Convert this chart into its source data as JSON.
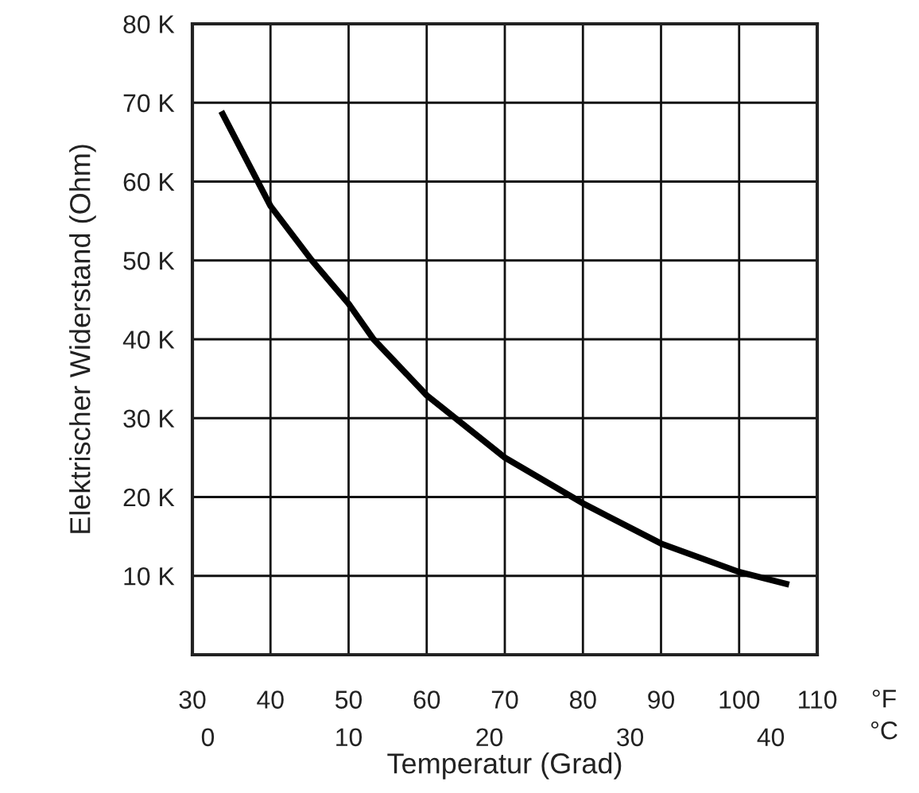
{
  "chart_data": {
    "type": "line",
    "xlabel": "Temperatur (Grad)",
    "ylabel": "Elektrischer Widerstand (Ohm)",
    "annotations": [
      "°F",
      "°C"
    ],
    "series": [
      {
        "color": "#000000",
        "x": [
          33.7,
          40,
          45.3,
          50,
          53.2,
          60,
          70,
          80,
          90,
          100,
          106.4
        ],
        "values": [
          68900,
          56900,
          50000,
          44500,
          40000,
          32900,
          25000,
          19200,
          14100,
          10500,
          8900
        ]
      }
    ],
    "xlim": [
      30,
      110
    ],
    "xticks": [
      30,
      40,
      50,
      60,
      70,
      80,
      90,
      100,
      110
    ],
    "x2lim": [
      -1.1,
      43.3
    ],
    "x2ticks": [
      0,
      10,
      20,
      30,
      40
    ],
    "ylim": [
      0,
      80000
    ],
    "yticks": [
      {
        "value": 10000,
        "label": "10 K"
      },
      {
        "value": 20000,
        "label": "20 K"
      },
      {
        "value": 30000,
        "label": "30 K"
      },
      {
        "value": 40000,
        "label": "40 K"
      },
      {
        "value": 50000,
        "label": "50 K"
      },
      {
        "value": 60000,
        "label": "60 K"
      },
      {
        "value": 70000,
        "label": "70 K"
      },
      {
        "value": 80000,
        "label": "80 K"
      }
    ],
    "grid": true,
    "line_style": "solid"
  }
}
